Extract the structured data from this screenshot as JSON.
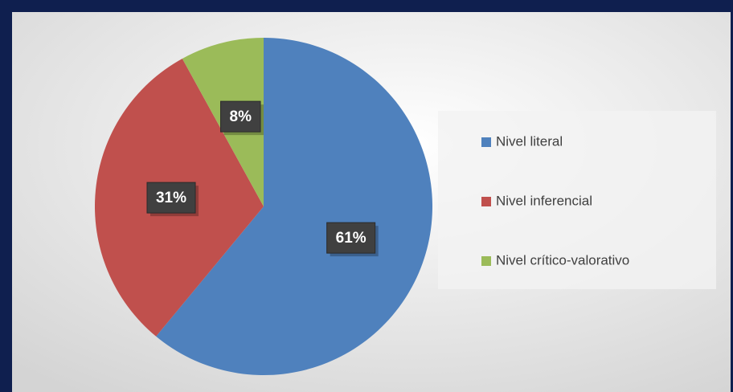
{
  "chart_data": {
    "type": "pie",
    "categories": [
      "Nivel literal",
      "Nivel inferencial",
      "Nivel crítico-valorativo"
    ],
    "values": [
      61,
      31,
      8
    ],
    "value_labels": [
      "61%",
      "31%",
      "8%"
    ],
    "colors": [
      "#4f81bd",
      "#c0504d",
      "#9bbb59"
    ],
    "legend": "right"
  }
}
